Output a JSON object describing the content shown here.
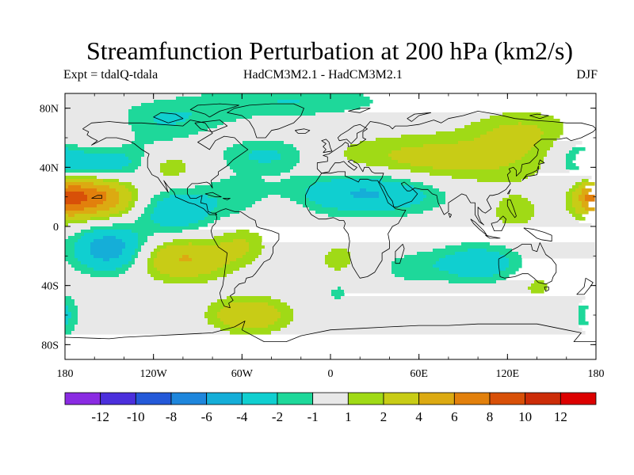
{
  "chart_data": {
    "type": "contour_map",
    "title": "Streamfunction Perturbation at 200 hPa (km2/s)",
    "subtitle_left": "Expt = tdalQ-tdala",
    "subtitle_center": "HadCM3M2.1 - HadCM3M2.1",
    "subtitle_right": "DJF",
    "x_range": [
      -180,
      180
    ],
    "y_range": [
      -90,
      90
    ],
    "x_ticks": [
      {
        "lon": -180,
        "label": "180"
      },
      {
        "lon": -120,
        "label": "120W"
      },
      {
        "lon": -60,
        "label": "60W"
      },
      {
        "lon": 0,
        "label": "0"
      },
      {
        "lon": 60,
        "label": "60E"
      },
      {
        "lon": 120,
        "label": "120E"
      },
      {
        "lon": 180,
        "label": "180"
      }
    ],
    "y_ticks": [
      {
        "lat": 80,
        "label": "80N"
      },
      {
        "lat": 40,
        "label": "40N"
      },
      {
        "lat": 0,
        "label": "0"
      },
      {
        "lat": -40,
        "label": "40S"
      },
      {
        "lat": -80,
        "label": "80S"
      }
    ],
    "levels": [
      -12,
      -10,
      -8,
      -6,
      -4,
      -2,
      -1,
      1,
      2,
      4,
      6,
      8,
      10,
      12
    ],
    "colorbar_labels": [
      "-12",
      "-10",
      "-8",
      "-6",
      "-4",
      "-2",
      "-1",
      "1",
      "2",
      "4",
      "6",
      "8",
      "10",
      "12"
    ],
    "colors": [
      "#8a2be2",
      "#4b2fdc",
      "#2459d8",
      "#1e86dc",
      "#15aed8",
      "#10cfd0",
      "#1ed89a",
      "#e8e8e8",
      "#a0da16",
      "#c8cc16",
      "#dcaa12",
      "#e2800c",
      "#d85008",
      "#cc2c08",
      "#dc0000"
    ],
    "features": [
      {
        "lon": -160,
        "lat": 20,
        "amp": 7.0,
        "sx": 18,
        "sy": 10
      },
      {
        "lon": -162,
        "lat": 62,
        "amp": 1.6,
        "sx": 18,
        "sy": 10
      },
      {
        "lon": -120,
        "lat": 65,
        "amp": -1.3,
        "sx": 25,
        "sy": 12
      },
      {
        "lon": -150,
        "lat": 42,
        "amp": -3.2,
        "sx": 20,
        "sy": 9
      },
      {
        "lon": -110,
        "lat": 40,
        "amp": 2.0,
        "sx": 14,
        "sy": 9
      },
      {
        "lon": -105,
        "lat": 10,
        "amp": -3.5,
        "sx": 17,
        "sy": 11
      },
      {
        "lon": -67,
        "lat": 20,
        "amp": -1.5,
        "sx": 18,
        "sy": 11
      },
      {
        "lon": -150,
        "lat": -15,
        "amp": -5.5,
        "sx": 17,
        "sy": 11
      },
      {
        "lon": -100,
        "lat": -22,
        "amp": 4.2,
        "sx": 22,
        "sy": 10
      },
      {
        "lon": -60,
        "lat": -12,
        "amp": 1.8,
        "sx": 12,
        "sy": 9
      },
      {
        "lon": -35,
        "lat": 10,
        "amp": 0.9,
        "sx": 12,
        "sy": 7
      },
      {
        "lon": -55,
        "lat": -60,
        "amp": 4.0,
        "sx": 18,
        "sy": 8
      },
      {
        "lon": -42,
        "lat": 48,
        "amp": -2.5,
        "sx": 22,
        "sy": 8
      },
      {
        "lon": -25,
        "lat": 85,
        "amp": -2.0,
        "sx": 45,
        "sy": 8
      },
      {
        "lon": 25,
        "lat": 23,
        "amp": -4.5,
        "sx": 35,
        "sy": 10
      },
      {
        "lon": 75,
        "lat": 45,
        "amp": 2.8,
        "sx": 55,
        "sy": 12
      },
      {
        "lon": 130,
        "lat": 65,
        "amp": 2.0,
        "sx": 25,
        "sy": 10
      },
      {
        "lon": 175,
        "lat": 45,
        "amp": -3.5,
        "sx": 15,
        "sy": 12
      },
      {
        "lon": 180,
        "lat": 20,
        "amp": 5.0,
        "sx": 10,
        "sy": 10
      },
      {
        "lon": 125,
        "lat": 10,
        "amp": 1.5,
        "sx": 15,
        "sy": 10
      },
      {
        "lon": 100,
        "lat": -25,
        "amp": -3.5,
        "sx": 20,
        "sy": 9
      },
      {
        "lon": 55,
        "lat": -28,
        "amp": -1.5,
        "sx": 15,
        "sy": 8
      },
      {
        "lon": 5,
        "lat": -22,
        "amp": 1.8,
        "sx": 8,
        "sy": 7
      },
      {
        "lon": 5,
        "lat": -45,
        "amp": -1.2,
        "sx": 9,
        "sy": 6
      },
      {
        "lon": 140,
        "lat": -40,
        "amp": 1.3,
        "sx": 12,
        "sy": 7
      },
      {
        "lon": 178,
        "lat": -60,
        "amp": -2.5,
        "sx": 8,
        "sy": 10
      },
      {
        "lon": -100,
        "lat": 75,
        "amp": -1.2,
        "sx": 30,
        "sy": 8
      }
    ]
  }
}
